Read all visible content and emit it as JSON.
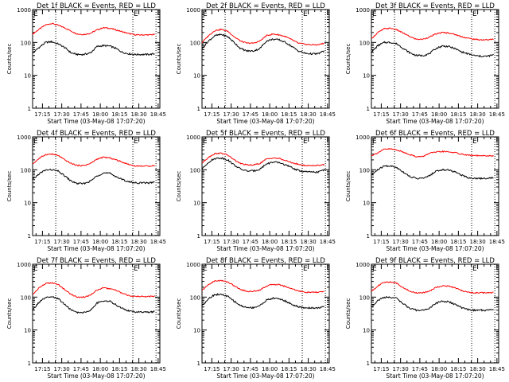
{
  "figure": {
    "start_time_label": "Start Time (03-May-08 17:07:20)",
    "ylabel": "Counts/sec",
    "title_suffix": "BLACK = Events, RED = LLD"
  },
  "chart_data": [
    {
      "type": "line",
      "title": "Det 1f BLACK = Events, RED = LLD",
      "xlabel": "Start Time (03-May-08 17:07:20)",
      "ylabel": "Counts/sec",
      "yscale": "log",
      "ylim": [
        1,
        1000
      ],
      "yticks": [
        "1",
        "10",
        "100",
        "1000"
      ],
      "xlim_minutes": [
        0,
        99
      ],
      "xticks": [
        "17:15",
        "17:30",
        "17:45",
        "18:00",
        "18:15",
        "18:30",
        "18:45"
      ],
      "x_minutes_from_start": [
        0,
        5,
        10,
        15,
        20,
        25,
        30,
        35,
        40,
        45,
        50,
        55,
        60,
        65,
        70,
        75,
        80,
        85,
        90,
        95
      ],
      "vlines_minutes": [
        18,
        78,
        96
      ],
      "markers": [
        {
          "label": "E",
          "minute": 0
        },
        {
          "label": "E",
          "minute": 78
        }
      ],
      "series": [
        {
          "name": "LLD",
          "color": "#ff0000",
          "values": [
            180,
            250,
            340,
            380,
            330,
            280,
            220,
            180,
            175,
            190,
            240,
            280,
            270,
            240,
            210,
            185,
            170,
            170,
            170,
            175
          ]
        },
        {
          "name": "Events",
          "color": "#000000",
          "values": [
            48,
            70,
            100,
            105,
            90,
            70,
            48,
            43,
            43,
            48,
            75,
            80,
            78,
            65,
            50,
            45,
            43,
            43,
            43,
            45
          ]
        }
      ]
    },
    {
      "type": "line",
      "title": "Det 2f BLACK = Events, RED = LLD",
      "xlabel": "Start Time (03-May-08 17:07:20)",
      "ylabel": "Counts/sec",
      "yscale": "log",
      "ylim": [
        1,
        1000
      ],
      "yticks": [
        "1",
        "10",
        "100",
        "1000"
      ],
      "xlim_minutes": [
        0,
        99
      ],
      "xticks": [
        "17:15",
        "17:30",
        "17:45",
        "18:00",
        "18:15",
        "18:30",
        "18:45"
      ],
      "x_minutes_from_start": [
        0,
        5,
        10,
        15,
        20,
        25,
        30,
        35,
        40,
        45,
        50,
        55,
        60,
        65,
        70,
        75,
        80,
        85,
        90,
        95
      ],
      "vlines_minutes": [
        18,
        78,
        96
      ],
      "markers": [
        {
          "label": "E",
          "minute": 0
        },
        {
          "label": "E",
          "minute": 78
        }
      ],
      "series": [
        {
          "name": "LLD",
          "color": "#ff0000",
          "values": [
            100,
            160,
            230,
            250,
            220,
            150,
            110,
            95,
            95,
            110,
            160,
            180,
            170,
            150,
            120,
            95,
            88,
            85,
            85,
            95
          ]
        },
        {
          "name": "Events",
          "color": "#000000",
          "values": [
            65,
            110,
            160,
            175,
            150,
            100,
            65,
            55,
            55,
            65,
            110,
            125,
            120,
            100,
            75,
            55,
            47,
            45,
            45,
            55
          ]
        }
      ]
    },
    {
      "type": "line",
      "title": "Det 3f BLACK = Events, RED = LLD",
      "xlabel": "Start Time (03-May-08 17:07:20)",
      "ylabel": "Counts/sec",
      "yscale": "log",
      "ylim": [
        1,
        1000
      ],
      "yticks": [
        "1",
        "10",
        "100",
        "1000"
      ],
      "xlim_minutes": [
        0,
        99
      ],
      "xticks": [
        "17:15",
        "17:30",
        "17:45",
        "18:00",
        "18:15",
        "18:30",
        "18:45"
      ],
      "x_minutes_from_start": [
        0,
        5,
        10,
        15,
        20,
        25,
        30,
        35,
        40,
        45,
        50,
        55,
        60,
        65,
        70,
        75,
        80,
        85,
        90,
        95
      ],
      "vlines_minutes": [
        18,
        78,
        96
      ],
      "markers": [
        {
          "label": "E",
          "minute": 0
        },
        {
          "label": "E",
          "minute": 78
        }
      ],
      "series": [
        {
          "name": "LLD",
          "color": "#ff0000",
          "values": [
            130,
            200,
            260,
            270,
            240,
            190,
            150,
            125,
            125,
            145,
            180,
            200,
            195,
            175,
            150,
            135,
            125,
            120,
            120,
            125
          ]
        },
        {
          "name": "Events",
          "color": "#000000",
          "values": [
            50,
            80,
            100,
            100,
            90,
            65,
            48,
            40,
            40,
            45,
            65,
            78,
            75,
            65,
            52,
            45,
            40,
            38,
            38,
            42
          ]
        }
      ]
    },
    {
      "type": "line",
      "title": "Det 4f BLACK = Events, RED = LLD",
      "xlabel": "Start Time (03-May-08 17:07:20)",
      "ylabel": "Counts/sec",
      "yscale": "log",
      "ylim": [
        1,
        1000
      ],
      "yticks": [
        "1",
        "10",
        "100",
        "1000"
      ],
      "xlim_minutes": [
        0,
        99
      ],
      "xticks": [
        "17:15",
        "17:30",
        "17:45",
        "18:00",
        "18:15",
        "18:30",
        "18:45"
      ],
      "x_minutes_from_start": [
        0,
        5,
        10,
        15,
        20,
        25,
        30,
        35,
        40,
        45,
        50,
        55,
        60,
        65,
        70,
        75,
        80,
        85,
        90,
        95
      ],
      "vlines_minutes": [
        18,
        78,
        96
      ],
      "markers": [
        {
          "label": "E",
          "minute": 0
        },
        {
          "label": "E",
          "minute": 78
        }
      ],
      "series": [
        {
          "name": "LLD",
          "color": "#ff0000",
          "values": [
            150,
            220,
            290,
            300,
            270,
            200,
            155,
            135,
            135,
            155,
            210,
            240,
            230,
            200,
            170,
            145,
            130,
            130,
            130,
            135
          ]
        },
        {
          "name": "Events",
          "color": "#000000",
          "values": [
            50,
            75,
            98,
            100,
            90,
            65,
            45,
            38,
            38,
            45,
            65,
            80,
            78,
            62,
            50,
            43,
            40,
            40,
            40,
            42
          ]
        }
      ]
    },
    {
      "type": "line",
      "title": "Det 5f BLACK = Events, RED = LLD",
      "xlabel": "Start Time (03-May-08 17:07:20)",
      "ylabel": "Counts/sec",
      "yscale": "log",
      "ylim": [
        1,
        1000
      ],
      "yticks": [
        "1",
        "10",
        "100",
        "1000"
      ],
      "xlim_minutes": [
        0,
        99
      ],
      "xticks": [
        "17:15",
        "17:30",
        "17:45",
        "18:00",
        "18:15",
        "18:30",
        "18:45"
      ],
      "x_minutes_from_start": [
        0,
        5,
        10,
        15,
        20,
        25,
        30,
        35,
        40,
        45,
        50,
        55,
        60,
        65,
        70,
        75,
        80,
        85,
        90,
        95
      ],
      "vlines_minutes": [
        18,
        78,
        96
      ],
      "markers": [
        {
          "label": "E",
          "minute": 0
        },
        {
          "label": "E",
          "minute": 78
        }
      ],
      "series": [
        {
          "name": "LLD",
          "color": "#ff0000",
          "values": [
            160,
            240,
            310,
            320,
            280,
            200,
            155,
            140,
            140,
            155,
            210,
            230,
            220,
            190,
            165,
            145,
            135,
            135,
            135,
            145
          ]
        },
        {
          "name": "Events",
          "color": "#000000",
          "values": [
            105,
            170,
            220,
            230,
            200,
            140,
            105,
            92,
            92,
            105,
            150,
            170,
            165,
            140,
            115,
            95,
            88,
            85,
            85,
            100
          ]
        }
      ]
    },
    {
      "type": "line",
      "title": "Det 6f BLACK = Events, RED = LLD",
      "xlabel": "Start Time (03-May-08 17:07:20)",
      "ylabel": "Counts/sec",
      "yscale": "log",
      "ylim": [
        1,
        1000
      ],
      "yticks": [
        "1",
        "10",
        "100",
        "1000"
      ],
      "xlim_minutes": [
        0,
        99
      ],
      "xticks": [
        "17:15",
        "17:30",
        "17:45",
        "18:00",
        "18:15",
        "18:30",
        "18:45"
      ],
      "x_minutes_from_start": [
        0,
        5,
        10,
        15,
        20,
        25,
        30,
        35,
        40,
        45,
        50,
        55,
        60,
        65,
        70,
        75,
        80,
        85,
        90,
        95
      ],
      "vlines_minutes": [
        18,
        78,
        96
      ],
      "markers": [
        {
          "label": "E",
          "minute": 0
        },
        {
          "label": "E",
          "minute": 78
        }
      ],
      "series": [
        {
          "name": "LLD",
          "color": "#ff0000",
          "values": [
            270,
            330,
            420,
            430,
            400,
            340,
            290,
            250,
            250,
            320,
            340,
            360,
            350,
            330,
            300,
            280,
            270,
            265,
            265,
            265
          ]
        },
        {
          "name": "Events",
          "color": "#000000",
          "values": [
            70,
            100,
            130,
            130,
            115,
            85,
            62,
            55,
            55,
            65,
            90,
            100,
            100,
            85,
            70,
            58,
            55,
            55,
            55,
            58
          ]
        }
      ]
    },
    {
      "type": "line",
      "title": "Det 7f BLACK = Events, RED = LLD",
      "xlabel": "Start Time (03-May-08 17:07:20)",
      "ylabel": "Counts/sec",
      "yscale": "log",
      "ylim": [
        1,
        1000
      ],
      "yticks": [
        "1",
        "10",
        "100",
        "1000"
      ],
      "xlim_minutes": [
        0,
        99
      ],
      "xticks": [
        "17:15",
        "17:30",
        "17:45",
        "18:00",
        "18:15",
        "18:30",
        "18:45"
      ],
      "x_minutes_from_start": [
        0,
        5,
        10,
        15,
        20,
        25,
        30,
        35,
        40,
        45,
        50,
        55,
        60,
        65,
        70,
        75,
        80,
        85,
        90,
        95
      ],
      "vlines_minutes": [
        18,
        78,
        96
      ],
      "markers": [
        {
          "label": "E",
          "minute": 0
        },
        {
          "label": "E",
          "minute": 78
        }
      ],
      "series": [
        {
          "name": "LLD",
          "color": "#ff0000",
          "values": [
            120,
            190,
            260,
            270,
            240,
            170,
            120,
            100,
            100,
            115,
            165,
            190,
            180,
            160,
            130,
            110,
            105,
            105,
            105,
            108
          ]
        },
        {
          "name": "Events",
          "color": "#000000",
          "values": [
            40,
            70,
            95,
            100,
            90,
            60,
            40,
            34,
            34,
            40,
            65,
            78,
            75,
            58,
            45,
            38,
            35,
            35,
            35,
            36
          ]
        }
      ]
    },
    {
      "type": "line",
      "title": "Det 8f BLACK = Events, RED = LLD",
      "xlabel": "Start Time (03-May-08 17:07:20)",
      "ylabel": "Counts/sec",
      "yscale": "log",
      "ylim": [
        1,
        1000
      ],
      "yticks": [
        "1",
        "10",
        "100",
        "1000"
      ],
      "xlim_minutes": [
        0,
        99
      ],
      "xticks": [
        "17:15",
        "17:30",
        "17:45",
        "18:00",
        "18:15",
        "18:30",
        "18:45"
      ],
      "x_minutes_from_start": [
        0,
        5,
        10,
        15,
        20,
        25,
        30,
        35,
        40,
        45,
        50,
        55,
        60,
        65,
        70,
        75,
        80,
        85,
        90,
        95
      ],
      "vlines_minutes": [
        18,
        78,
        96
      ],
      "markers": [
        {
          "label": "E",
          "minute": 0
        },
        {
          "label": "E",
          "minute": 78
        }
      ],
      "series": [
        {
          "name": "LLD",
          "color": "#ff0000",
          "values": [
            160,
            240,
            310,
            320,
            290,
            220,
            170,
            150,
            150,
            165,
            215,
            245,
            240,
            210,
            180,
            155,
            140,
            140,
            140,
            150
          ]
        },
        {
          "name": "Events",
          "color": "#000000",
          "values": [
            55,
            90,
            120,
            120,
            105,
            75,
            55,
            48,
            48,
            55,
            80,
            92,
            90,
            75,
            60,
            50,
            47,
            47,
            47,
            50
          ]
        }
      ]
    },
    {
      "type": "line",
      "title": "Det 9f BLACK = Events, RED = LLD",
      "xlabel": "Start Time (03-May-08 17:07:20)",
      "ylabel": "Counts/sec",
      "yscale": "log",
      "ylim": [
        1,
        1000
      ],
      "yticks": [
        "1",
        "10",
        "100",
        "1000"
      ],
      "xlim_minutes": [
        0,
        99
      ],
      "xticks": [
        "17:15",
        "17:30",
        "17:45",
        "18:00",
        "18:15",
        "18:30",
        "18:45"
      ],
      "x_minutes_from_start": [
        0,
        5,
        10,
        15,
        20,
        25,
        30,
        35,
        40,
        45,
        50,
        55,
        60,
        65,
        70,
        75,
        80,
        85,
        90,
        95
      ],
      "vlines_minutes": [
        18,
        78,
        96
      ],
      "markers": [
        {
          "label": "E",
          "minute": 0
        },
        {
          "label": "E",
          "minute": 78
        }
      ],
      "series": [
        {
          "name": "LLD",
          "color": "#ff0000",
          "values": [
            150,
            220,
            280,
            290,
            260,
            190,
            150,
            135,
            135,
            150,
            195,
            220,
            215,
            190,
            160,
            140,
            135,
            135,
            135,
            138
          ]
        },
        {
          "name": "Events",
          "color": "#000000",
          "values": [
            50,
            80,
            98,
            100,
            90,
            62,
            45,
            40,
            40,
            45,
            65,
            75,
            72,
            60,
            48,
            42,
            40,
            40,
            40,
            42
          ]
        }
      ]
    }
  ]
}
